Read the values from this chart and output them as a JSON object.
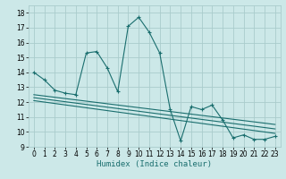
{
  "xlabel": "Humidex (Indice chaleur)",
  "background_color": "#cce8e8",
  "grid_color": "#aacccc",
  "line_color": "#1a6e6e",
  "xlim": [
    -0.5,
    23.5
  ],
  "ylim": [
    9,
    18.5
  ],
  "xticks": [
    0,
    1,
    2,
    3,
    4,
    5,
    6,
    7,
    8,
    9,
    10,
    11,
    12,
    13,
    14,
    15,
    16,
    17,
    18,
    19,
    20,
    21,
    22,
    23
  ],
  "yticks": [
    9,
    10,
    11,
    12,
    13,
    14,
    15,
    16,
    17,
    18
  ],
  "series1_x": [
    0,
    1,
    2,
    3,
    4,
    5,
    6,
    7,
    8,
    9,
    10,
    11,
    12,
    13,
    14,
    15,
    16,
    17,
    18,
    19,
    20,
    21,
    22,
    23
  ],
  "series1_y": [
    14.0,
    13.5,
    12.8,
    12.6,
    12.5,
    15.3,
    15.4,
    14.3,
    12.7,
    17.1,
    17.7,
    16.7,
    15.3,
    11.5,
    9.4,
    11.7,
    11.5,
    11.8,
    10.8,
    9.6,
    9.8,
    9.5,
    9.5,
    9.7
  ],
  "series2_x": [
    0,
    23
  ],
  "series2_y": [
    12.5,
    10.5
  ],
  "series3_x": [
    0,
    23
  ],
  "series3_y": [
    12.3,
    10.2
  ],
  "series4_x": [
    0,
    23
  ],
  "series4_y": [
    12.1,
    9.9
  ],
  "tick_fontsize": 5.5,
  "xlabel_fontsize": 6.5
}
